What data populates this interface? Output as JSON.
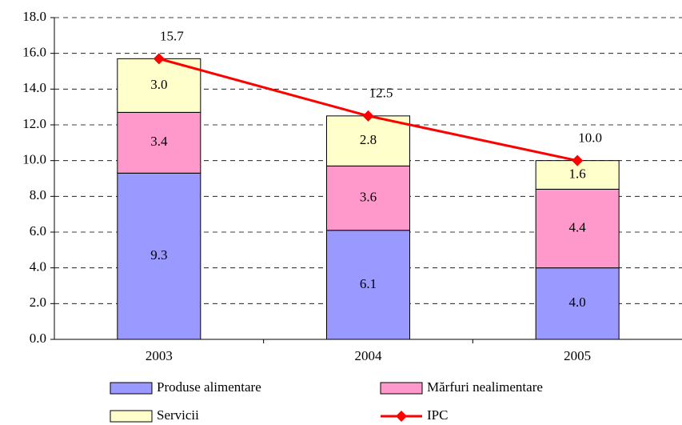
{
  "chart_data": {
    "type": "bar",
    "stacked": true,
    "categories": [
      "2003",
      "2004",
      "2005"
    ],
    "series": [
      {
        "name": "Produse alimentare",
        "color": "#9999ff",
        "values": [
          9.3,
          6.1,
          4.0
        ],
        "value_labels": [
          "9.3",
          "6.1",
          "4.0"
        ]
      },
      {
        "name": "Mărfuri nealimentare",
        "color": "#ff99cc",
        "values": [
          3.4,
          3.6,
          4.4
        ],
        "value_labels": [
          "3.4",
          "3.6",
          "4.4"
        ]
      },
      {
        "name": "Servicii",
        "color": "#ffffcc",
        "values": [
          3.0,
          2.8,
          1.6
        ],
        "value_labels": [
          "3.0",
          "2.8",
          "1.6"
        ]
      },
      {
        "name": "IPC",
        "type": "line",
        "color": "#ff0000",
        "values": [
          15.7,
          12.5,
          10.0
        ],
        "value_labels": [
          "15.7",
          "12.5",
          "10.0"
        ]
      }
    ],
    "ylim": [
      0,
      18
    ],
    "yticks": [
      {
        "value": 0,
        "label": "0.0"
      },
      {
        "value": 2,
        "label": "2.0"
      },
      {
        "value": 4,
        "label": "4.0"
      },
      {
        "value": 6,
        "label": "6.0"
      },
      {
        "value": 8,
        "label": "8.0"
      },
      {
        "value": 10,
        "label": "10.0"
      },
      {
        "value": 12,
        "label": "12.0"
      },
      {
        "value": 14,
        "label": "14.0"
      },
      {
        "value": 16,
        "label": "16.0"
      },
      {
        "value": 18,
        "label": "18.0"
      }
    ],
    "grid": true
  }
}
